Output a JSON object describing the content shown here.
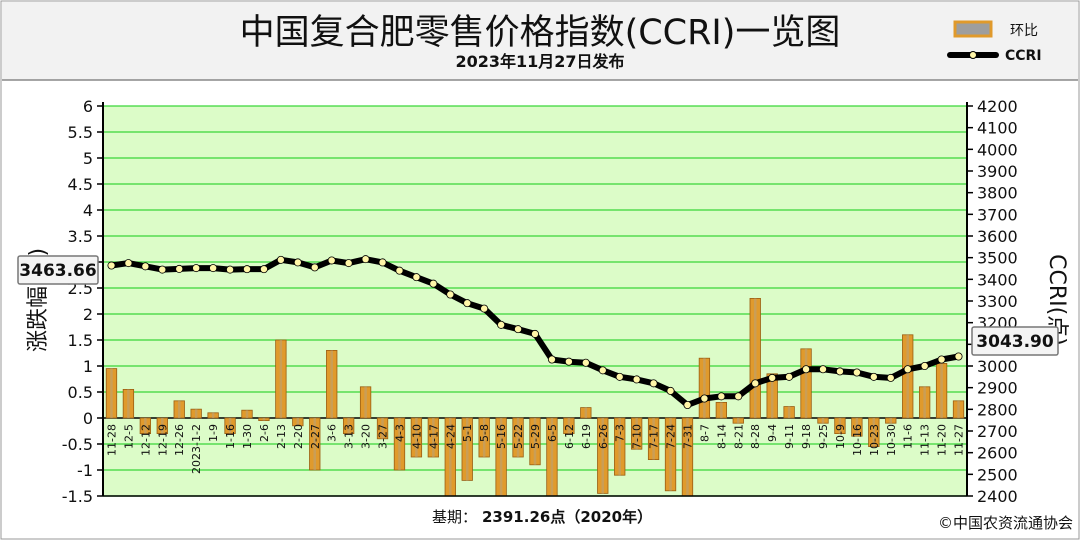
{
  "header": {
    "title": "中国复合肥零售价格指数(CCRI)一览图",
    "subtitle": "2023年11月27日发布"
  },
  "legend": {
    "bar_label": "环比",
    "line_label": "CCRI"
  },
  "footer": {
    "base_label": "基期：",
    "base_value": "2391.26点（2020年）",
    "copyright": "©中国农资流通协会"
  },
  "callouts": {
    "first": "3463.66",
    "last": "3043.90"
  },
  "colors": {
    "plot_bg": "#dcfcc8",
    "grid": "#39d639",
    "bar": "#e09a2c",
    "bar_edge": "#9a5d12",
    "line": "#000000",
    "marker": "#fff6a8",
    "frame": "#f2f2f2"
  },
  "chart_data": {
    "type": "bar+line",
    "ylabel": "涨跌幅(%)",
    "y2label": "CCRI(点)",
    "ylim": [
      -1.5,
      6
    ],
    "yticks": [
      -1.5,
      -1,
      -0.5,
      0,
      0.5,
      1,
      1.5,
      2,
      2.5,
      3,
      3.5,
      4,
      4.5,
      5,
      5.5,
      6
    ],
    "ytick_labels": [
      "-1.5",
      "-1",
      "-0.5",
      "0",
      "0.5",
      "1",
      "1.5",
      "2",
      "2.5",
      "3",
      "3.5",
      "4",
      "4.5",
      "5",
      "5.5",
      "6"
    ],
    "y2lim": [
      2400,
      4200
    ],
    "y2ticks": [
      2400,
      2500,
      2600,
      2700,
      2800,
      2900,
      3000,
      3100,
      3200,
      3300,
      3400,
      3500,
      3600,
      3700,
      3800,
      3900,
      4000,
      4100,
      4200
    ],
    "y2tick_labels": [
      "2400",
      "2500",
      "2600",
      "2700",
      "2800",
      "2900",
      "3000",
      "3100",
      "3200",
      "3300",
      "3400",
      "3500",
      "3600",
      "3700",
      "3800",
      "3900",
      "4000",
      "4100",
      "4200"
    ],
    "grid": true,
    "legend_position": "top-right",
    "categories": [
      "11-28",
      "12-5",
      "12-12",
      "12-19",
      "12-26",
      "2023-1-2",
      "1-9",
      "1-16",
      "1-30",
      "2-6",
      "2-13",
      "2-20",
      "2-27",
      "3-6",
      "3-13",
      "3-20",
      "3-27",
      "4-3",
      "4-10",
      "4-17",
      "4-24",
      "5-1",
      "5-8",
      "5-16",
      "5-22",
      "5-29",
      "6-5",
      "6-12",
      "6-19",
      "6-26",
      "7-3",
      "7-10",
      "7-17",
      "7-24",
      "7-31",
      "8-7",
      "8-14",
      "8-21",
      "8-28",
      "9-4",
      "9-11",
      "9-18",
      "9-25",
      "10-9",
      "10-16",
      "10-23",
      "10-30",
      "11-6",
      "11-13",
      "11-20",
      "11-27"
    ],
    "series": [
      {
        "name": "环比",
        "type": "bar",
        "axis": "left",
        "values": [
          0.95,
          0.55,
          -0.3,
          -0.3,
          0.33,
          0.17,
          0.1,
          -0.3,
          0.15,
          -0.05,
          1.5,
          -0.15,
          -1.0,
          1.3,
          -0.3,
          0.6,
          -0.4,
          -1.0,
          -0.75,
          -0.75,
          -1.5,
          -1.2,
          -0.75,
          -1.5,
          -0.75,
          -0.9,
          -1.5,
          -0.3,
          0.2,
          -1.45,
          -1.1,
          -0.6,
          -0.8,
          -1.4,
          -1.5,
          1.15,
          0.3,
          -0.1,
          2.3,
          0.85,
          0.22,
          1.33,
          -0.1,
          -0.3,
          -0.35,
          -0.55,
          -0.1,
          1.6,
          0.6,
          1.05,
          0.33
        ]
      },
      {
        "name": "CCRI",
        "type": "line",
        "axis": "right",
        "values": [
          3463.66,
          3475,
          3460,
          3445,
          3448,
          3452,
          3452,
          3445,
          3447,
          3447,
          3490,
          3478,
          3455,
          3487,
          3475,
          3493,
          3478,
          3440,
          3410,
          3380,
          3330,
          3290,
          3265,
          3190,
          3170,
          3148,
          3030,
          3020,
          3015,
          2980,
          2950,
          2938,
          2920,
          2885,
          2820,
          2850,
          2860,
          2860,
          2920,
          2945,
          2950,
          2985,
          2985,
          2975,
          2970,
          2950,
          2945,
          2985,
          3000,
          3030,
          3043.9
        ]
      }
    ]
  }
}
